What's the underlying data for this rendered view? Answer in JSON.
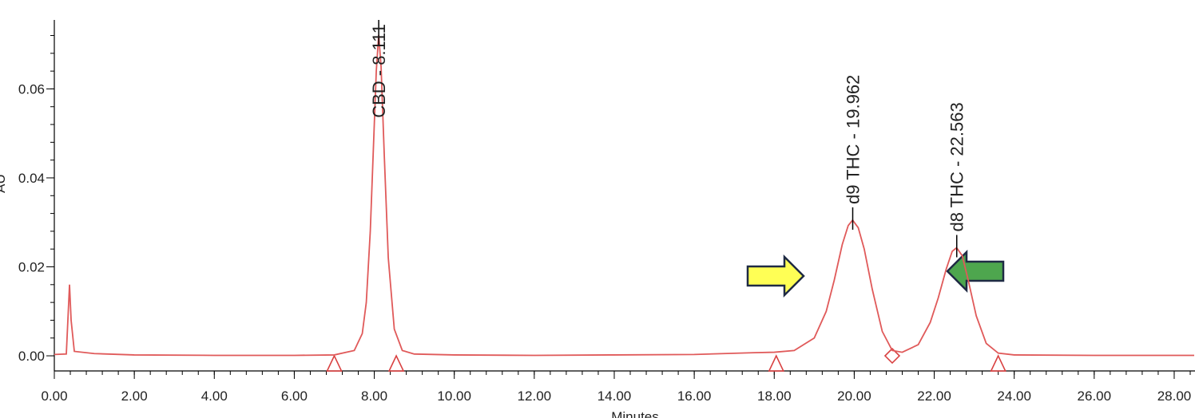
{
  "chart_data": {
    "type": "line",
    "x_label": "Minutes",
    "y_label": "AU",
    "x": [
      0,
      0.3,
      0.38,
      0.42,
      0.5,
      1,
      2,
      4,
      6,
      7,
      7.5,
      7.7,
      7.8,
      7.9,
      8.0,
      8.05,
      8.11,
      8.17,
      8.25,
      8.35,
      8.5,
      8.7,
      9,
      10,
      12,
      14,
      16,
      17.5,
      18,
      18.5,
      19,
      19.3,
      19.5,
      19.7,
      19.85,
      19.96,
      20.1,
      20.25,
      20.45,
      20.7,
      20.95,
      21.2,
      21.6,
      21.9,
      22.1,
      22.3,
      22.45,
      22.56,
      22.7,
      22.85,
      23.05,
      23.3,
      23.6,
      24,
      26,
      28,
      28.5
    ],
    "series": [
      {
        "color": "#e05a5a",
        "values": [
          0.0003,
          0.0004,
          0.016,
          0.008,
          0.001,
          0.0005,
          0.0002,
          0.0001,
          0.0001,
          0.0002,
          0.0012,
          0.005,
          0.012,
          0.028,
          0.052,
          0.064,
          0.0721,
          0.065,
          0.045,
          0.022,
          0.006,
          0.0012,
          0.0004,
          0.0002,
          0.0001,
          0.0002,
          0.0003,
          0.0007,
          0.0008,
          0.0012,
          0.004,
          0.01,
          0.017,
          0.025,
          0.0293,
          0.0305,
          0.0288,
          0.024,
          0.015,
          0.0055,
          0.0012,
          0.0008,
          0.0025,
          0.0075,
          0.013,
          0.0195,
          0.0235,
          0.0243,
          0.0225,
          0.017,
          0.009,
          0.0028,
          0.0006,
          0.0002,
          0.0001,
          0.0001,
          0.0001
        ]
      }
    ],
    "xlim": [
      0,
      28.52
    ],
    "ylim": [
      -0.0034,
      0.0755
    ],
    "xticks": [
      {
        "value": 0,
        "label": "0.00"
      },
      {
        "value": 2,
        "label": "2.00"
      },
      {
        "value": 4,
        "label": "4.00"
      },
      {
        "value": 6,
        "label": "6.00"
      },
      {
        "value": 8,
        "label": "8.00"
      },
      {
        "value": 10,
        "label": "10.00"
      },
      {
        "value": 12,
        "label": "12.00"
      },
      {
        "value": 14,
        "label": "14.00"
      },
      {
        "value": 16,
        "label": "16.00"
      },
      {
        "value": 18,
        "label": "18.00"
      },
      {
        "value": 20,
        "label": "20.00"
      },
      {
        "value": 22,
        "label": "22.00"
      },
      {
        "value": 24,
        "label": "24.00"
      },
      {
        "value": 26,
        "label": "26.00"
      },
      {
        "value": 28,
        "label": "28.00"
      }
    ],
    "yticks": [
      {
        "value": 0,
        "label": "0.00"
      },
      0.02,
      0.04,
      0.06
    ],
    "minor_divisions": 5,
    "annotations": [
      {
        "text": "CBD - 8.111",
        "x": 8.111,
        "y": 0.0721
      },
      {
        "text": "d9 THC - 19.962",
        "x": 19.962,
        "y": 0.0305
      },
      {
        "text": "d8 THC - 22.563",
        "x": 22.563,
        "y": 0.0243
      }
    ],
    "integration_marks": [
      {
        "x": 7.0,
        "shape": "triangle"
      },
      {
        "x": 8.55,
        "shape": "triangle"
      },
      {
        "x": 18.05,
        "shape": "triangle"
      },
      {
        "x": 20.95,
        "shape": "diamond"
      },
      {
        "x": 23.6,
        "shape": "triangle"
      }
    ]
  }
}
